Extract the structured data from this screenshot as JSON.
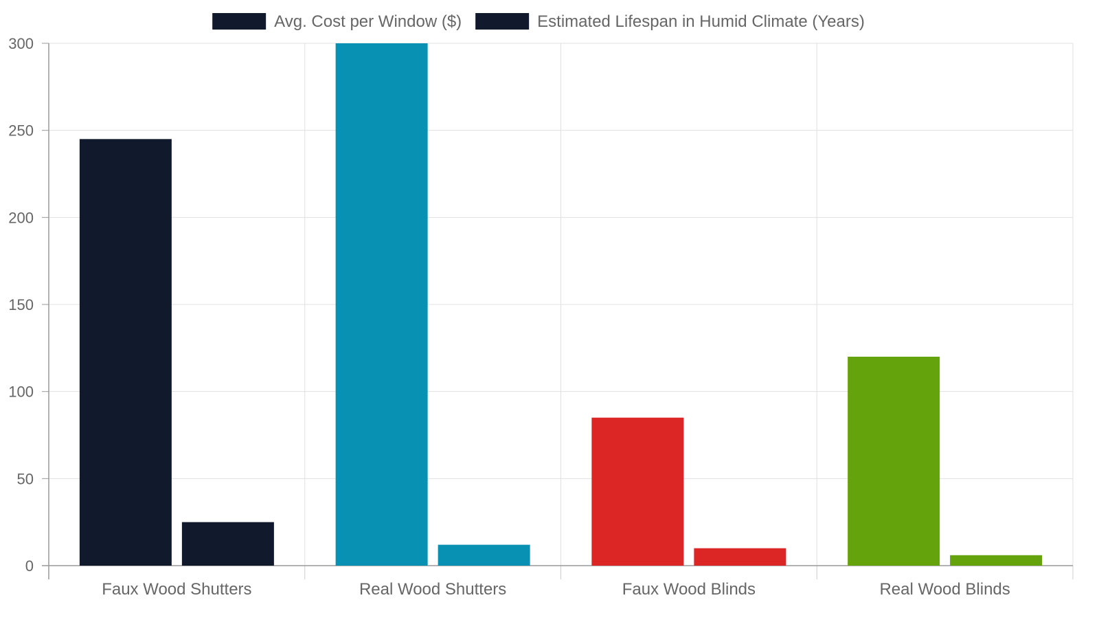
{
  "chart_data": {
    "type": "bar",
    "categories": [
      "Faux Wood Shutters",
      "Real Wood Shutters",
      "Faux Wood Blinds",
      "Real Wood Blinds"
    ],
    "series": [
      {
        "name": "Avg. Cost per Window ($)",
        "values": [
          245,
          300,
          85,
          120
        ]
      },
      {
        "name": "Estimated Lifespan in Humid Climate (Years)",
        "values": [
          25,
          12,
          10,
          6
        ]
      }
    ],
    "category_colors": [
      "#111a2c",
      "#0891b2",
      "#dc2626",
      "#65a30d"
    ],
    "legend_swatch_color": "#111a2c",
    "ylim": [
      0,
      300
    ],
    "yticks": [
      0,
      50,
      100,
      150,
      200,
      250,
      300
    ],
    "grid": true,
    "legend_position": "top-center",
    "xlabel": "",
    "ylabel": ""
  }
}
